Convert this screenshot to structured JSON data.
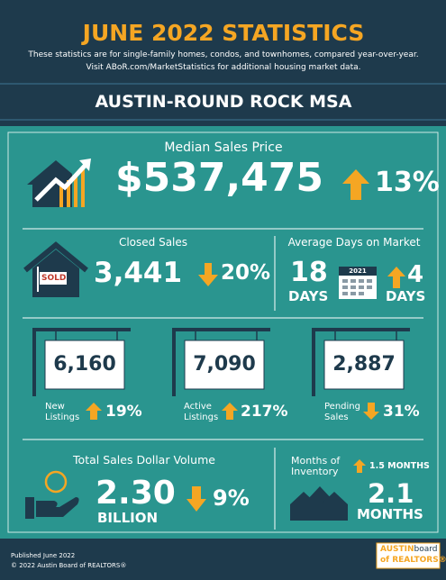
{
  "header": {
    "title": "JUNE 2022 STATISTICS",
    "subtitle_lines": [
      "These statistics are for single-family homes, condos, and townhomes, compared year-over-year.",
      "Visit ABoR.com/MarketStatistics for additional housing market data."
    ],
    "region": "AUSTIN-ROUND ROCK MSA"
  },
  "median_sales_price": {
    "label": "Median Sales Price",
    "value": "$537,475",
    "change": "13%"
  },
  "closed_sales": {
    "label": "Closed Sales",
    "sign": "SOLD",
    "value": "3,441",
    "change": "20%"
  },
  "average_days_on_market": {
    "label": "Average Days on Market",
    "value": "18",
    "unit": "DAYS",
    "calendar_year": "2021",
    "change": "4",
    "change_unit": "DAYS"
  },
  "listings": [
    {
      "value": "6,160",
      "label": "New Listings",
      "change": "19%"
    },
    {
      "value": "7,090",
      "label": "Active Listings",
      "change": "217%"
    },
    {
      "value": "2,887",
      "label": "Pending Sales",
      "change": "31%"
    }
  ],
  "total_sales_dollar_volume": {
    "label": "Total Sales Dollar Volume",
    "value": "2.30",
    "unit": "BILLION",
    "change": "9%"
  },
  "months_of_inventory": {
    "label": "Months of Inventory",
    "change": "1.5 MONTHS",
    "value": "2.1",
    "unit": "MONTHS"
  },
  "footer": {
    "published": "Published June 2022",
    "copyright": "© 2022 Austin Board of REALTORS®",
    "logo_line1": "AUSTIN",
    "logo_line1b": "board",
    "logo_line2": "of REALTORS®"
  }
}
